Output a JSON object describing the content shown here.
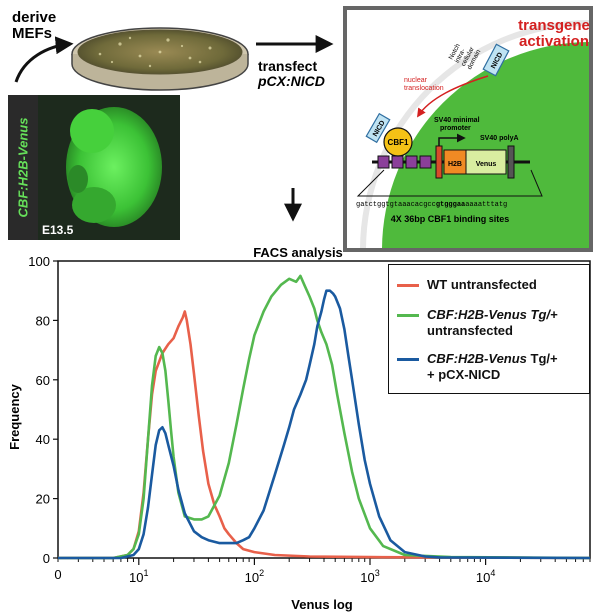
{
  "top": {
    "derive_label": [
      "derive",
      "MEFs"
    ],
    "transfect_label": "transfect",
    "transfect_plasmid": "pCX:NICD",
    "embryo_label": "CBF:H2B-Venus",
    "embryo_stage": "E13.5",
    "nucleus_title": [
      "transgene",
      "activation"
    ],
    "notch_domain_label": [
      "Notch",
      "intra-",
      "cellular",
      "domain"
    ],
    "nicd": "NICD",
    "nuclear_translocation": [
      "nuclear",
      "translocation"
    ],
    "cbf1": "CBF1",
    "sv40_promoter": [
      "SV40 minimal",
      "promoter"
    ],
    "sv40_polya": "SV40 polyA",
    "h2b": "H2B",
    "venus": "Venus",
    "sequence_plain1": "gatctggtgtaaacacgcc",
    "sequence_bold": "gtgggaa",
    "sequence_plain2": "aaaatttatg",
    "binding_sites": "4X 36bp CBF1 binding sites"
  },
  "colors": {
    "wt": "#e8604a",
    "untransfected_tg": "#54b84f",
    "nicd_tg": "#1a5aa0",
    "nucleus_green": "#4fba3c",
    "nucleus_title": "#d42020"
  },
  "chart_data": {
    "type": "line",
    "title": "FACS analysis",
    "xlabel": "Venus log",
    "ylabel": "Frequency",
    "x_scale": "log",
    "xlim": [
      2,
      80000
    ],
    "ylim": [
      0,
      100
    ],
    "yticks": [
      0,
      20,
      40,
      60,
      80,
      100
    ],
    "xticks": [
      {
        "base": "10",
        "exp": "1",
        "v": 10
      },
      {
        "base": "10",
        "exp": "2",
        "v": 100
      },
      {
        "base": "10",
        "exp": "3",
        "v": 1000
      },
      {
        "base": "10",
        "exp": "4",
        "v": 10000
      }
    ],
    "x0_label": "0",
    "legend_position": "top-right",
    "series": [
      {
        "name": "WT untransfected",
        "legend": [
          {
            "t": "WT untransfected",
            "i": false
          }
        ],
        "color": "#e8604a",
        "x": [
          2,
          6,
          8,
          9,
          10,
          11,
          12,
          13,
          14,
          16,
          18,
          20,
          22,
          24,
          25,
          26,
          28,
          30,
          33,
          36,
          40,
          45,
          50,
          55,
          60,
          70,
          80,
          100,
          150,
          300,
          1000,
          80000
        ],
        "y": [
          0,
          0,
          1,
          3,
          9,
          22,
          40,
          55,
          63,
          69,
          72,
          74,
          78,
          81,
          83,
          80,
          72,
          62,
          48,
          36,
          25,
          18,
          14,
          10,
          8,
          5,
          3,
          2,
          1,
          0.5,
          0.3,
          0
        ]
      },
      {
        "name": "CBF:H2B-Venus Tg/+ untransfected",
        "legend": [
          {
            "t": "CBF:H2B-Venus Tg/+",
            "i": true
          },
          {
            "t": "untransfected",
            "i": false
          }
        ],
        "color": "#54b84f",
        "x": [
          2,
          6,
          8,
          9,
          10,
          11,
          12,
          13,
          14,
          15,
          16,
          17,
          18,
          19,
          20,
          22,
          25,
          30,
          35,
          40,
          50,
          60,
          70,
          80,
          90,
          100,
          120,
          140,
          170,
          200,
          230,
          250,
          270,
          300,
          330,
          350,
          380,
          420,
          470,
          520,
          600,
          700,
          800,
          1000,
          1300,
          2000,
          5000,
          80000
        ],
        "y": [
          0,
          0,
          1,
          3,
          8,
          20,
          40,
          58,
          68,
          71,
          69,
          63,
          53,
          43,
          34,
          22,
          14,
          13,
          13,
          14,
          21,
          32,
          45,
          57,
          67,
          75,
          83,
          88,
          92,
          94,
          93,
          95,
          92,
          88,
          84,
          80,
          76,
          72,
          65,
          55,
          42,
          29,
          20,
          10,
          4,
          1,
          0.3,
          0
        ]
      },
      {
        "name": "CBF:H2B-Venus Tg/+ + pCX-NICD",
        "legend": [
          {
            "t": "CBF:H2B-Venus",
            "i": true
          },
          {
            "t": " Tg/+",
            "i": false
          },
          {
            "br": true
          },
          {
            "t": "+ pCX-NICD",
            "i": false
          }
        ],
        "color": "#1a5aa0",
        "x": [
          2,
          7,
          9,
          10,
          11,
          12,
          13,
          14,
          15,
          16,
          17,
          18,
          20,
          22,
          25,
          30,
          35,
          40,
          50,
          60,
          70,
          80,
          90,
          100,
          120,
          150,
          180,
          200,
          220,
          250,
          280,
          300,
          330,
          350,
          380,
          400,
          420,
          450,
          480,
          500,
          550,
          600,
          650,
          700,
          800,
          900,
          1000,
          1200,
          1500,
          2000,
          3000,
          4000,
          80000
        ],
        "y": [
          0,
          0,
          1,
          3,
          8,
          17,
          28,
          38,
          43,
          44,
          42,
          38,
          31,
          23,
          15,
          9,
          7,
          6,
          5,
          5,
          5,
          6,
          7,
          10,
          16,
          28,
          38,
          44,
          50,
          55,
          60,
          65,
          72,
          78,
          83,
          87,
          90,
          90,
          89,
          88,
          84,
          77,
          68,
          60,
          45,
          33,
          25,
          14,
          6,
          2,
          0.5,
          0.2,
          0
        ]
      }
    ]
  }
}
